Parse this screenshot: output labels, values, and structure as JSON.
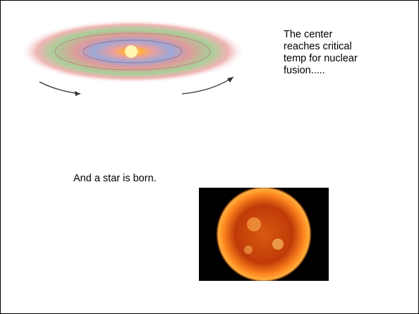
{
  "slide": {
    "caption_lines": [
      "The center",
      "reaches critical",
      "temp for nuclear",
      "fusion....."
    ],
    "subcaption": "And a star is born."
  }
}
